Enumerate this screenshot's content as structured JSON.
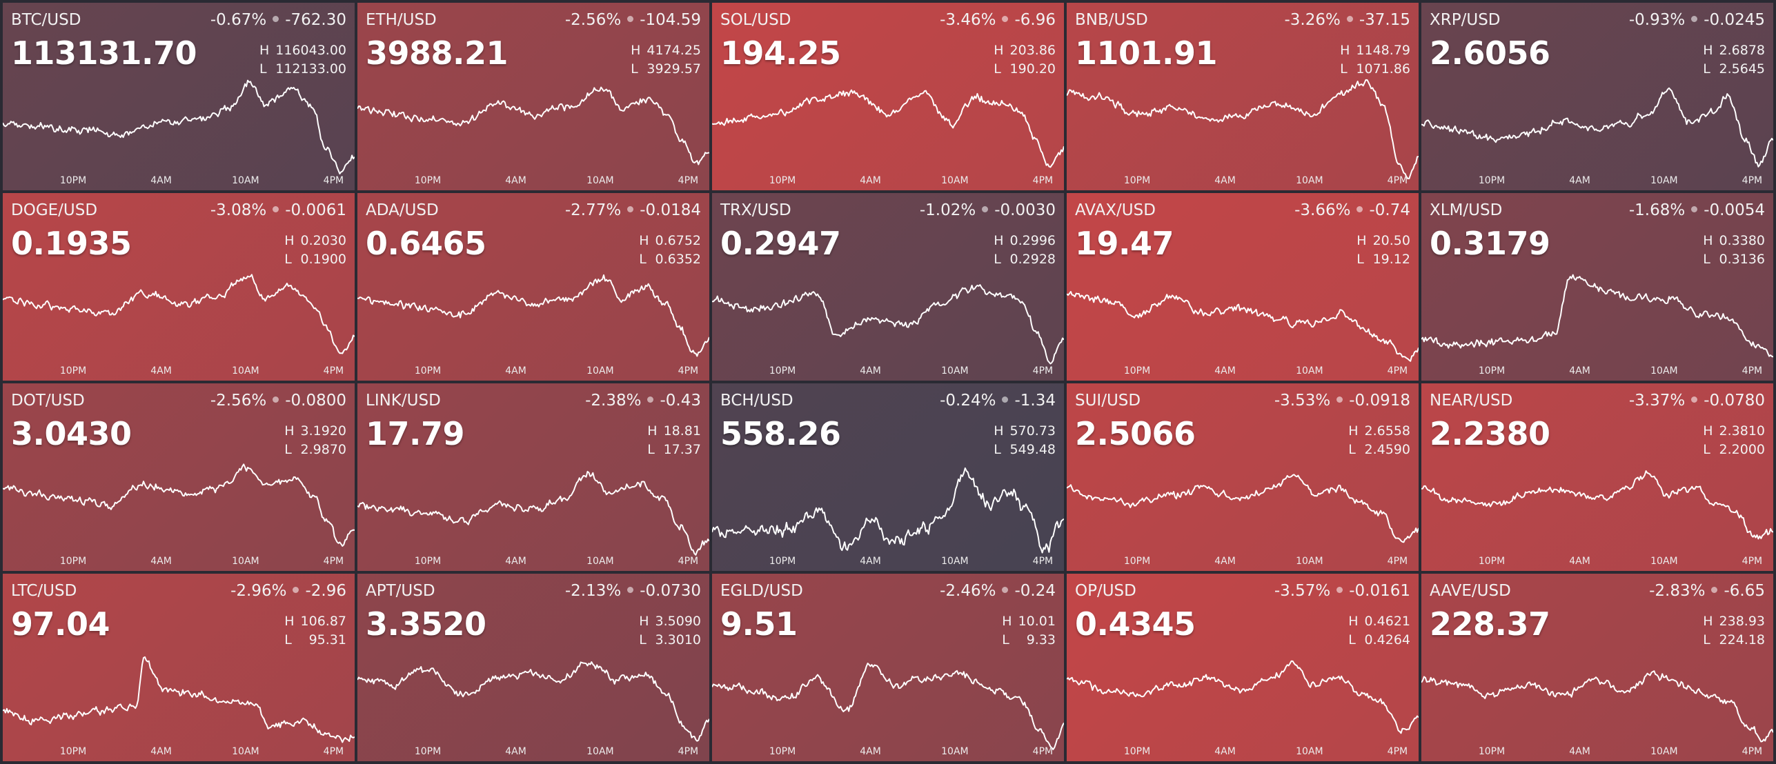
{
  "axis_labels": [
    "10PM",
    "4AM",
    "10AM",
    "4PM"
  ],
  "colors": {
    "neutral": "#474352",
    "red": "#c24648"
  },
  "tiles": [
    {
      "pair": "BTC/USD",
      "pct": "-0.67%",
      "chg": "-762.30",
      "price": "113131.70",
      "high": "116043.00",
      "low": "112133.00",
      "heat": 0.2,
      "shape": "btc"
    },
    {
      "pair": "ETH/USD",
      "pct": "-2.56%",
      "chg": "-104.59",
      "price": "3988.21",
      "high": "4174.25",
      "low": "3929.57",
      "heat": 0.62,
      "shape": "eth"
    },
    {
      "pair": "SOL/USD",
      "pct": "-3.46%",
      "chg": "-6.96",
      "price": "194.25",
      "high": "203.86",
      "low": "190.20",
      "heat": 0.95,
      "shape": "sol"
    },
    {
      "pair": "BNB/USD",
      "pct": "-3.26%",
      "chg": "-37.15",
      "price": "1101.91",
      "high": "1148.79",
      "low": "1071.86",
      "heat": 0.85,
      "shape": "bnb"
    },
    {
      "pair": "XRP/USD",
      "pct": "-0.93%",
      "chg": "-0.0245",
      "price": "2.6056",
      "high": "2.6878",
      "low": "2.5645",
      "heat": 0.22,
      "shape": "xrp"
    },
    {
      "pair": "DOGE/USD",
      "pct": "-3.08%",
      "chg": "-0.0061",
      "price": "0.1935",
      "high": "0.2030",
      "low": "0.1900",
      "heat": 0.85,
      "shape": "eth"
    },
    {
      "pair": "ADA/USD",
      "pct": "-2.77%",
      "chg": "-0.0184",
      "price": "0.6465",
      "high": "0.6752",
      "low": "0.6352",
      "heat": 0.72,
      "shape": "eth"
    },
    {
      "pair": "TRX/USD",
      "pct": "-1.02%",
      "chg": "-0.0030",
      "price": "0.2947",
      "high": "0.2996",
      "low": "0.2928",
      "heat": 0.25,
      "shape": "trx"
    },
    {
      "pair": "AVAX/USD",
      "pct": "-3.66%",
      "chg": "-0.74",
      "price": "19.47",
      "high": "20.50",
      "low": "19.12",
      "heat": 0.98,
      "shape": "avax"
    },
    {
      "pair": "XLM/USD",
      "pct": "-1.68%",
      "chg": "-0.0054",
      "price": "0.3179",
      "high": "0.3380",
      "low": "0.3136",
      "heat": 0.4,
      "shape": "xlm"
    },
    {
      "pair": "DOT/USD",
      "pct": "-2.56%",
      "chg": "-0.0800",
      "price": "3.0430",
      "high": "3.1920",
      "low": "2.9870",
      "heat": 0.62,
      "shape": "eth"
    },
    {
      "pair": "LINK/USD",
      "pct": "-2.38%",
      "chg": "-0.43",
      "price": "17.79",
      "high": "18.81",
      "low": "17.37",
      "heat": 0.58,
      "shape": "link"
    },
    {
      "pair": "BCH/USD",
      "pct": "-0.24%",
      "chg": "-1.34",
      "price": "558.26",
      "high": "570.73",
      "low": "549.48",
      "heat": 0.02,
      "shape": "bch"
    },
    {
      "pair": "SUI/USD",
      "pct": "-3.53%",
      "chg": "-0.0918",
      "price": "2.5066",
      "high": "2.6558",
      "low": "2.4590",
      "heat": 0.9,
      "shape": "sui"
    },
    {
      "pair": "NEAR/USD",
      "pct": "-3.37%",
      "chg": "-0.0780",
      "price": "2.2380",
      "high": "2.3810",
      "low": "2.2000",
      "heat": 0.88,
      "shape": "sui"
    },
    {
      "pair": "LTC/USD",
      "pct": "-2.96%",
      "chg": "-2.96",
      "price": "97.04",
      "high": "106.87",
      "low": "95.31",
      "heat": 0.8,
      "shape": "ltc"
    },
    {
      "pair": "APT/USD",
      "pct": "-2.13%",
      "chg": "-0.0730",
      "price": "3.3520",
      "high": "3.5090",
      "low": "3.3010",
      "heat": 0.52,
      "shape": "apt"
    },
    {
      "pair": "EGLD/USD",
      "pct": "-2.46%",
      "chg": "-0.24",
      "price": "9.51",
      "high": "10.01",
      "low": "9.33",
      "heat": 0.6,
      "shape": "egld"
    },
    {
      "pair": "OP/USD",
      "pct": "-3.57%",
      "chg": "-0.0161",
      "price": "0.4345",
      "high": "0.4621",
      "low": "0.4264",
      "heat": 0.95,
      "shape": "sui"
    },
    {
      "pair": "AAVE/USD",
      "pct": "-2.83%",
      "chg": "-6.65",
      "price": "228.37",
      "high": "238.93",
      "low": "224.18",
      "heat": 0.74,
      "shape": "aave"
    }
  ]
}
